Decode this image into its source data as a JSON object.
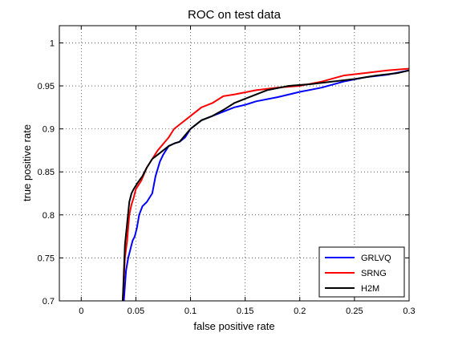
{
  "chart_data": {
    "type": "line",
    "title": "ROC on test data",
    "xlabel": "false positive rate",
    "ylabel": "true positive rate",
    "xlim": [
      -0.02,
      0.3
    ],
    "ylim": [
      0.7,
      1.02
    ],
    "xticks": [
      0,
      0.05,
      0.1,
      0.15,
      0.2,
      0.25,
      0.3
    ],
    "xtick_labels": [
      "0",
      "0.05",
      "0.1",
      "0.15",
      "0.2",
      "0.25",
      "0.3"
    ],
    "yticks": [
      0.7,
      0.75,
      0.8,
      0.85,
      0.9,
      0.95,
      1
    ],
    "ytick_labels": [
      "0.7",
      "0.75",
      "0.8",
      "0.85",
      "0.9",
      "0.95",
      "1"
    ],
    "grid": true,
    "legend_position": "bottom-right",
    "series": [
      {
        "name": "GRLVQ",
        "color": "#0000ff",
        "x": [
          0.039,
          0.041,
          0.043,
          0.045,
          0.047,
          0.049,
          0.051,
          0.053,
          0.056,
          0.06,
          0.065,
          0.068,
          0.072,
          0.075,
          0.08,
          0.085,
          0.09,
          0.095,
          0.1,
          0.11,
          0.12,
          0.13,
          0.14,
          0.15,
          0.16,
          0.18,
          0.2,
          0.22,
          0.24,
          0.26,
          0.28,
          0.3
        ],
        "y": [
          0.7,
          0.735,
          0.75,
          0.76,
          0.77,
          0.775,
          0.785,
          0.8,
          0.81,
          0.815,
          0.825,
          0.845,
          0.862,
          0.87,
          0.88,
          0.883,
          0.885,
          0.89,
          0.9,
          0.91,
          0.915,
          0.92,
          0.925,
          0.928,
          0.932,
          0.937,
          0.943,
          0.948,
          0.955,
          0.96,
          0.963,
          0.968
        ]
      },
      {
        "name": "SRNG",
        "color": "#ff0000",
        "x": [
          0.038,
          0.04,
          0.042,
          0.044,
          0.046,
          0.048,
          0.05,
          0.055,
          0.06,
          0.065,
          0.07,
          0.08,
          0.085,
          0.09,
          0.1,
          0.11,
          0.12,
          0.13,
          0.14,
          0.16,
          0.18,
          0.2,
          0.22,
          0.24,
          0.26,
          0.28,
          0.3
        ],
        "y": [
          0.7,
          0.75,
          0.77,
          0.8,
          0.812,
          0.82,
          0.83,
          0.84,
          0.855,
          0.865,
          0.875,
          0.89,
          0.9,
          0.905,
          0.915,
          0.925,
          0.93,
          0.938,
          0.94,
          0.945,
          0.948,
          0.95,
          0.955,
          0.962,
          0.965,
          0.968,
          0.97
        ]
      },
      {
        "name": "H2M",
        "color": "#000000",
        "x": [
          0.038,
          0.04,
          0.042,
          0.044,
          0.046,
          0.048,
          0.052,
          0.056,
          0.06,
          0.065,
          0.07,
          0.075,
          0.08,
          0.085,
          0.09,
          0.1,
          0.11,
          0.12,
          0.13,
          0.14,
          0.15,
          0.17,
          0.19,
          0.21,
          0.23,
          0.25,
          0.27,
          0.29,
          0.3
        ],
        "y": [
          0.7,
          0.765,
          0.79,
          0.815,
          0.825,
          0.83,
          0.838,
          0.845,
          0.855,
          0.865,
          0.87,
          0.875,
          0.88,
          0.883,
          0.885,
          0.9,
          0.91,
          0.915,
          0.922,
          0.93,
          0.935,
          0.945,
          0.95,
          0.952,
          0.955,
          0.958,
          0.962,
          0.965,
          0.968
        ]
      }
    ]
  }
}
